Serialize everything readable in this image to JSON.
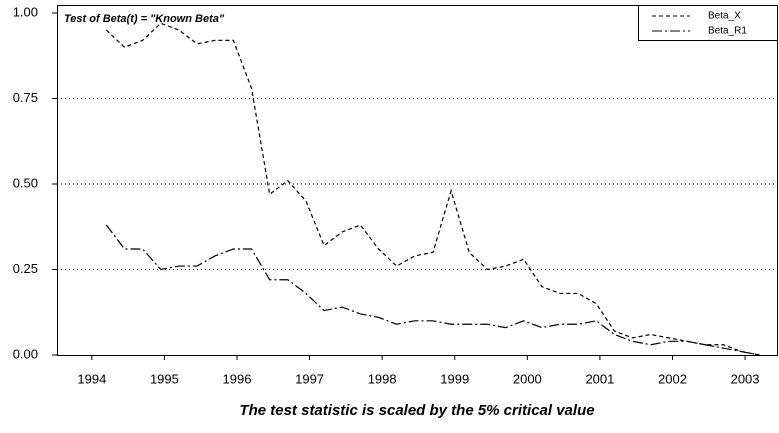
{
  "chart_data": {
    "type": "line",
    "title": "Test of Beta(t) = \"Known Beta\"",
    "caption": "The test statistic is scaled by the 5% critical value",
    "x": [
      1994.2,
      1994.45,
      1994.7,
      1994.95,
      1995.2,
      1995.45,
      1995.7,
      1995.95,
      1996.2,
      1996.45,
      1996.7,
      1996.95,
      1997.2,
      1997.45,
      1997.7,
      1997.95,
      1998.2,
      1998.45,
      1998.7,
      1998.95,
      1999.2,
      1999.45,
      1999.7,
      1999.95,
      2000.2,
      2000.45,
      2000.7,
      2000.95,
      2001.2,
      2001.45,
      2001.7,
      2001.95,
      2002.2,
      2002.45,
      2002.7,
      2002.95,
      2003.2
    ],
    "series": [
      {
        "name": "Beta_X",
        "color": "#000000",
        "dash": "4,3",
        "values": [
          0.95,
          0.9,
          0.92,
          0.97,
          0.95,
          0.91,
          0.92,
          0.92,
          0.78,
          0.47,
          0.51,
          0.45,
          0.32,
          0.36,
          0.38,
          0.31,
          0.26,
          0.29,
          0.3,
          0.48,
          0.3,
          0.25,
          0.26,
          0.28,
          0.2,
          0.18,
          0.18,
          0.15,
          0.07,
          0.05,
          0.06,
          0.05,
          0.04,
          0.03,
          0.03,
          0.01,
          0.0
        ]
      },
      {
        "name": "Beta_R1",
        "color": "#000000",
        "dash": "10,3,2,3",
        "values": [
          0.38,
          0.31,
          0.31,
          0.25,
          0.26,
          0.26,
          0.29,
          0.31,
          0.31,
          0.22,
          0.22,
          0.18,
          0.13,
          0.14,
          0.12,
          0.11,
          0.09,
          0.1,
          0.1,
          0.09,
          0.09,
          0.09,
          0.08,
          0.1,
          0.08,
          0.09,
          0.09,
          0.1,
          0.06,
          0.04,
          0.03,
          0.04,
          0.04,
          0.03,
          0.02,
          0.01,
          0.0
        ]
      }
    ],
    "xlim": [
      1993.52,
      2003.44
    ],
    "xticks": [
      1994,
      1995,
      1996,
      1997,
      1998,
      1999,
      2000,
      2001,
      2002,
      2003
    ],
    "ylim": [
      0,
      1
    ],
    "yticks": [
      {
        "value": 0,
        "label": "0.00"
      },
      0.25,
      {
        "value": 0.5,
        "label": "0.50"
      },
      0.75,
      {
        "value": 1,
        "label": "1.00"
      }
    ],
    "grid": true,
    "legend": "upper right"
  }
}
